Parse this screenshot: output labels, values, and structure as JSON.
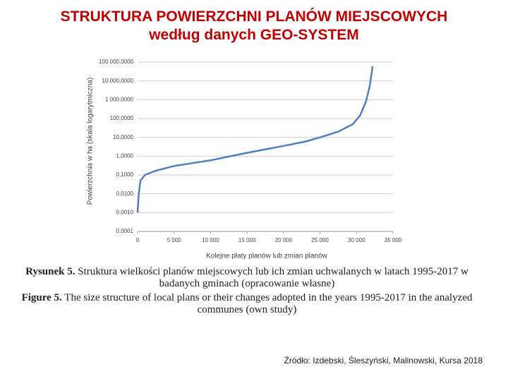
{
  "header": {
    "title_line1": "STRUKTURA POWIERZCHNI PLANÓW MIEJSCOWYCH",
    "title_line2": "według danych GEO-SYSTEM"
  },
  "chart_data": {
    "type": "line",
    "ylabel": "Powierzchnia w ha (skala logarytmiczna)",
    "xlabel": "Kolejne płaty planów lub zmian planów",
    "log_y": true,
    "grid": true,
    "xlim": [
      0,
      35000
    ],
    "xticks": [
      0,
      {
        "value": 5000,
        "label": "5 000"
      },
      {
        "value": 10000,
        "label": "10 000"
      },
      {
        "value": 15000,
        "label": "15 000"
      },
      {
        "value": 20000,
        "label": "20 000"
      },
      {
        "value": 25000,
        "label": "25 000"
      },
      {
        "value": 30000,
        "label": "30 000"
      },
      {
        "value": 35000,
        "label": "35 000"
      }
    ],
    "ylim": [
      0.0001,
      100000
    ],
    "yticks": [
      {
        "value": 0.0001,
        "label": "0,0001"
      },
      {
        "value": 0.001,
        "label": "0,0010"
      },
      {
        "value": 0.01,
        "label": "0,0100"
      },
      {
        "value": 0.1,
        "label": "0,1000"
      },
      {
        "value": 1,
        "label": "1,0000"
      },
      {
        "value": 10,
        "label": "10,0000"
      },
      {
        "value": 100,
        "label": "100,0000"
      },
      {
        "value": 1000,
        "label": "1 000,0000"
      },
      {
        "value": 10000,
        "label": "10 000,0000"
      },
      {
        "value": 100000,
        "label": "100 000,0000"
      }
    ],
    "series": [
      {
        "color": "#4f7fbf",
        "x": [
          0,
          150,
          400,
          1000,
          2500,
          5000,
          10000,
          15000,
          20000,
          23000,
          25000,
          27500,
          29500,
          30500,
          31300,
          31800,
          32100,
          32200
        ],
        "values": [
          0.001,
          0.01,
          0.05,
          0.1,
          0.17,
          0.3,
          0.6,
          1.5,
          3.5,
          6,
          10,
          20,
          50,
          150,
          800,
          5000,
          30000,
          60000
        ]
      }
    ]
  },
  "caption": {
    "pl_label": "Rysunek 5.",
    "pl_text": "Struktura wielkości planów miejscowych lub ich zmian uchwalanych w latach 1995-2017 w badanych gminach (opracowanie własne)",
    "en_label": "Figure 5.",
    "en_text": "The size structure of local plans or their changes adopted in the years 1995-2017 in the analyzed communes (own study)"
  },
  "source": "Źródło: Izdebski, Śleszyński, Malinowski, Kursa 2018"
}
